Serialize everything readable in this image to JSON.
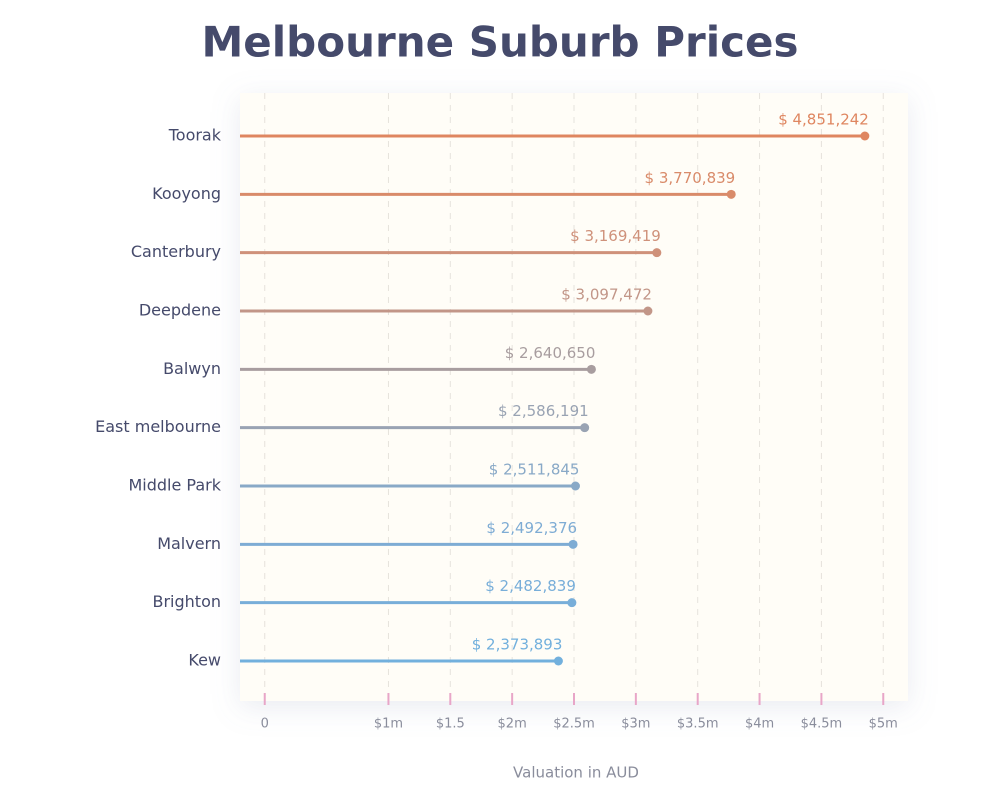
{
  "chart_data": {
    "type": "lollipop",
    "orientation": "horizontal",
    "title": "Melbourne Suburb Prices",
    "x_label": "Valuation in AUD",
    "categories": [
      "Toorak",
      "Kooyong",
      "Canterbury",
      "Deepdene",
      "Balwyn",
      "East melbourne",
      "Middle Park",
      "Malvern",
      "Brighton",
      "Kew"
    ],
    "values": [
      4851242,
      3770839,
      3169419,
      3097472,
      2640650,
      2586191,
      2511845,
      2492376,
      2482839,
      2373893
    ],
    "value_labels": [
      "$ 4,851,242",
      "$ 3,770,839",
      "$ 3,169,419",
      "$ 3,097,472",
      "$ 2,640,650",
      "$ 2,586,191",
      "$ 2,511,845",
      "$ 2,492,376",
      "$ 2,482,839",
      "$ 2,373,893"
    ],
    "colors": [
      "#df8660",
      "#d98b6a",
      "#cf917a",
      "#c29688",
      "#a89d9f",
      "#99a3b3",
      "#89a9c7",
      "#7eacd4",
      "#78aed9",
      "#72b0dd"
    ],
    "xlim": [
      -200000,
      5200000
    ],
    "xticks": [
      0,
      {
        "value": 1000000,
        "label": "$1m"
      },
      {
        "value": 1500000,
        "label": "$1.5"
      },
      {
        "value": 2000000,
        "label": "$2m"
      },
      {
        "value": 2500000,
        "label": "$2.5m"
      },
      {
        "value": 3000000,
        "label": "$3m"
      },
      {
        "value": 3500000,
        "label": "$3.5m"
      },
      {
        "value": 4000000,
        "label": "$4m"
      },
      {
        "value": 4500000,
        "label": "$4.5m"
      },
      {
        "value": 5000000,
        "label": "$5m"
      }
    ],
    "grid": true
  }
}
